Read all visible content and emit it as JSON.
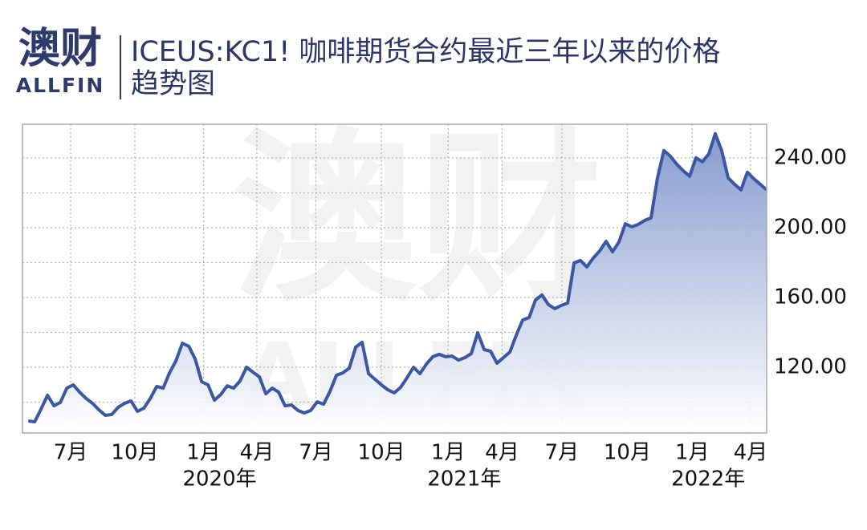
{
  "logo": {
    "name": "澳财",
    "subname": "ALLFIN"
  },
  "chart_data": {
    "type": "area",
    "title": [
      "ICEUS:KC1! 咖啡期货合约最近三年以来的价格",
      "趋势图"
    ],
    "watermark": {
      "name": "澳财",
      "subname": "ALLFIN"
    },
    "color": "#3b56a3",
    "values": [
      89.2,
      88.7,
      96.1,
      103.9,
      97.9,
      99.8,
      108.0,
      109.9,
      105.7,
      102.1,
      99.3,
      95.6,
      92.4,
      92.9,
      97.0,
      99.3,
      100.7,
      94.7,
      96.5,
      102.1,
      109.0,
      108.0,
      116.8,
      123.7,
      133.8,
      132.0,
      124.6,
      111.7,
      109.9,
      101.1,
      104.4,
      109.4,
      108.0,
      112.2,
      120.0,
      117.2,
      114.5,
      104.8,
      108.0,
      105.7,
      97.9,
      98.4,
      95.2,
      93.8,
      95.2,
      100.2,
      98.8,
      106.2,
      115.4,
      116.8,
      119.5,
      131.5,
      134.3,
      116.3,
      113.1,
      109.9,
      107.1,
      105.3,
      108.5,
      114.0,
      120.0,
      116.3,
      121.8,
      126.0,
      127.4,
      126.0,
      126.4,
      124.1,
      125.5,
      127.8,
      139.8,
      130.1,
      129.2,
      122.3,
      125.5,
      128.7,
      138.4,
      147.1,
      148.5,
      158.6,
      161.4,
      155.9,
      153.6,
      155.4,
      156.8,
      179.8,
      181.2,
      177.5,
      182.6,
      186.7,
      192.2,
      186.2,
      191.8,
      202.3,
      200.5,
      201.9,
      204.2,
      205.6,
      228.6,
      244.2,
      241.0,
      236.4,
      232.7,
      229.5,
      240.1,
      237.8,
      242.4,
      253.9,
      244.2,
      228.6,
      224.9,
      221.7,
      231.8,
      228.1,
      224.9,
      221.7
    ],
    "xlim": [
      -0.9,
      115
    ],
    "xticks": [
      {
        "value": 6.6,
        "label": "7月"
      },
      {
        "value": 16.6,
        "label": "10月"
      },
      {
        "value": 27.3,
        "label": "1月"
      },
      {
        "value": 35.6,
        "label": "4月"
      },
      {
        "value": 44.8,
        "label": "7月"
      },
      {
        "value": 55,
        "label": "10月"
      },
      {
        "value": 65.4,
        "label": "1月"
      },
      {
        "value": 73.8,
        "label": "4月"
      },
      {
        "value": 83.1,
        "label": "7月"
      },
      {
        "value": 93.3,
        "label": "10月"
      },
      {
        "value": 103.4,
        "label": "1月"
      },
      {
        "value": 112.5,
        "label": "4月"
      }
    ],
    "xticks_year": [
      {
        "value": 27.3,
        "label": "2020年"
      },
      {
        "value": 65.4,
        "label": "2021年"
      },
      {
        "value": 103.4,
        "label": "2022年"
      }
    ],
    "ylim": [
      82.3,
      259.3
    ],
    "yticks": [
      {
        "value": 120,
        "label": "120.00"
      },
      {
        "value": 160,
        "label": "160.00"
      },
      {
        "value": 200,
        "label": "200.00"
      },
      {
        "value": 240,
        "label": "240.00"
      }
    ],
    "yticks_minor": [
      100,
      140,
      180,
      220
    ],
    "grid": true
  }
}
